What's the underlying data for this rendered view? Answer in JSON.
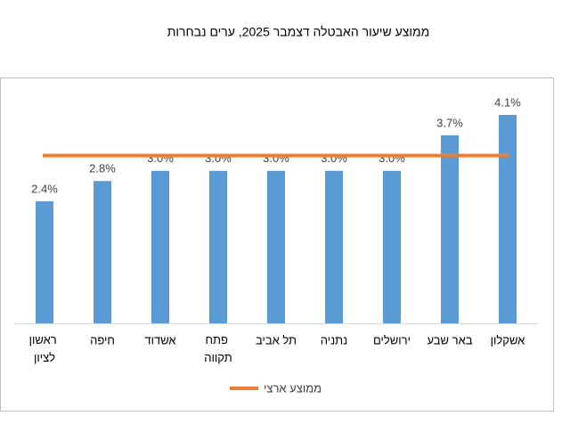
{
  "chart_data": {
    "type": "bar",
    "title": "ממוצע שיעור האבטלה דצמבר 2025, ערים נבחרות",
    "categories": [
      "ראשון לציון",
      "חיפה",
      "אשדוד",
      "פתח תקווה",
      "תל אביב",
      "נתניה",
      "ירושלים",
      "באר שבע",
      "אשקלון"
    ],
    "values": [
      2.4,
      2.8,
      3.0,
      3.0,
      3.0,
      3.0,
      3.0,
      3.7,
      4.1
    ],
    "value_labels": [
      "2.4%",
      "2.8%",
      "3.0%",
      "3.0%",
      "3.0%",
      "3.0%",
      "3.0%",
      "3.7%",
      "4.1%"
    ],
    "color": "#5b9bd5",
    "average": {
      "name": "ממוצע ארצי",
      "value": 3.3,
      "color": "#ed7d31"
    }
  }
}
